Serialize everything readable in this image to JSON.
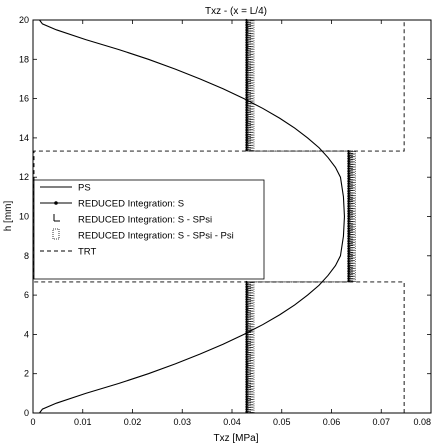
{
  "chart_data": {
    "type": "line",
    "title": "Txz - (x = L/4)",
    "xlabel": "Txz [MPa]",
    "ylabel": "h [mm]",
    "xlim": [
      0,
      0.08
    ],
    "ylim": [
      0,
      20
    ],
    "xticks": [
      0,
      0.01,
      0.02,
      0.03,
      0.04,
      0.05,
      0.06,
      0.07,
      0.08
    ],
    "xtick_labels": [
      "0",
      "0.01",
      "0.02",
      "0.03",
      "0.04",
      "0.05",
      "0.06",
      "0.07",
      "0.08"
    ],
    "yticks": [
      0,
      2,
      4,
      6,
      8,
      10,
      12,
      14,
      16,
      18,
      20
    ],
    "ytick_labels": [
      "0",
      "2",
      "4",
      "6",
      "8",
      "10",
      "12",
      "14",
      "16",
      "18",
      "20"
    ],
    "grid": false,
    "legend_position": "center-left",
    "series": [
      {
        "name": "PS",
        "style": "solid",
        "x": [
          0.0013,
          0.0019,
          0.0047,
          0.0106,
          0.0172,
          0.0232,
          0.0286,
          0.0336,
          0.0382,
          0.0424,
          0.0462,
          0.0496,
          0.0526,
          0.0552,
          0.0575,
          0.0593,
          0.0608,
          0.0618,
          0.0624,
          0.0626,
          0.0624,
          0.0618,
          0.0608,
          0.0593,
          0.0575,
          0.0552,
          0.0526,
          0.0496,
          0.0462,
          0.0424,
          0.0382,
          0.0336,
          0.0286,
          0.0232,
          0.0172,
          0.0106,
          0.0047,
          0.0019,
          0.0013
        ],
        "y": [
          0,
          0.2,
          0.5,
          1.0,
          1.5,
          2.0,
          2.5,
          3.0,
          3.5,
          4.0,
          4.5,
          5.0,
          5.5,
          6.0,
          6.5,
          7.0,
          7.5,
          8.0,
          9.0,
          10.0,
          11.0,
          12.0,
          12.5,
          13.0,
          13.5,
          14.0,
          14.5,
          15.0,
          15.5,
          16.0,
          16.5,
          17.0,
          17.5,
          18.0,
          18.5,
          19.0,
          19.5,
          19.8,
          20.0
        ]
      },
      {
        "name": "REDUCED Integration: S",
        "style": "solid-dot",
        "segments": [
          {
            "x": [
              0.0429,
              0.0429
            ],
            "y": [
              0,
              6.67
            ]
          },
          {
            "x": [
              0.0634,
              0.0634
            ],
            "y": [
              6.67,
              13.33
            ]
          },
          {
            "x": [
              0.0429,
              0.0429
            ],
            "y": [
              13.33,
              20
            ]
          }
        ]
      },
      {
        "name": "REDUCED Integration: S - SPsi",
        "style": "step-markers",
        "segments": [
          {
            "x": [
              0.0432,
              0.0432
            ],
            "y": [
              0,
              6.67
            ]
          },
          {
            "x": [
              0.0637,
              0.0637
            ],
            "y": [
              6.67,
              13.33
            ]
          },
          {
            "x": [
              0.0432,
              0.0432
            ],
            "y": [
              13.33,
              20
            ]
          }
        ]
      },
      {
        "name": "REDUCED Integration: S - SPsi - Psi",
        "style": "dotted-box",
        "segments": [
          {
            "x": [
              0.0439,
              0.0439
            ],
            "y": [
              0,
              6.67
            ]
          },
          {
            "x": [
              0.0643,
              0.0643
            ],
            "y": [
              6.67,
              13.33
            ]
          },
          {
            "x": [
              0.0439,
              0.0439
            ],
            "y": [
              13.33,
              20
            ]
          }
        ]
      },
      {
        "name": "TRT",
        "style": "dashed",
        "x": [
          0.0746,
          0.0746,
          0.0002,
          0.0002,
          0.0746,
          0.0746
        ],
        "y": [
          0,
          6.67,
          6.67,
          13.33,
          13.33,
          20
        ]
      }
    ]
  }
}
